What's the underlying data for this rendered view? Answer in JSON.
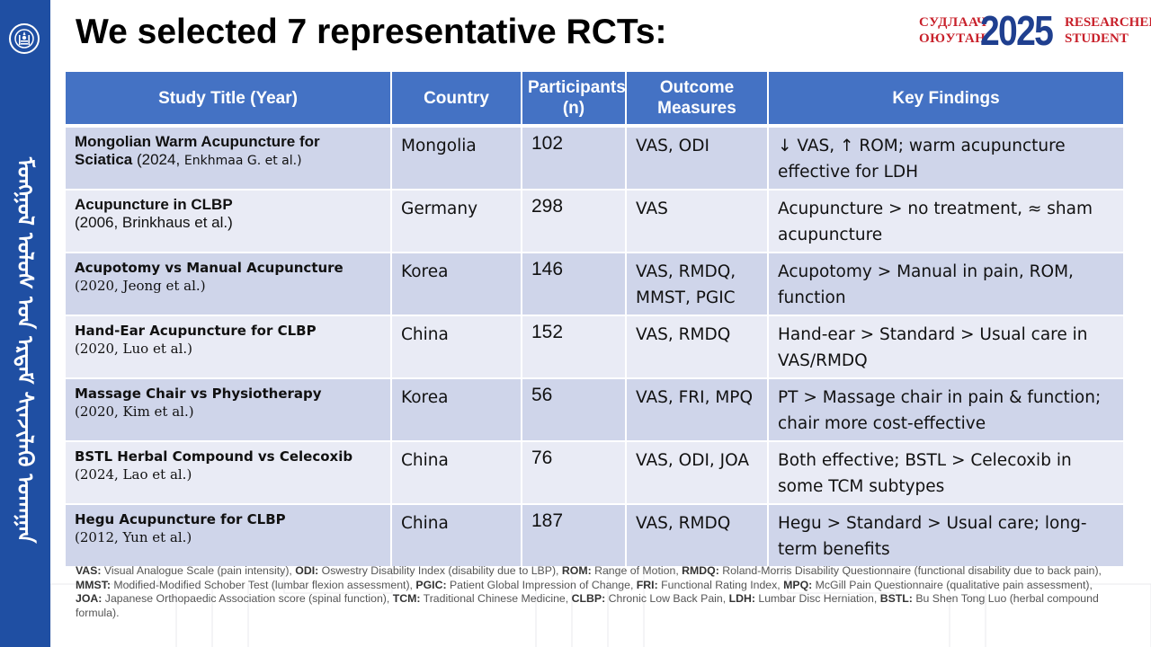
{
  "slide": {
    "title": "We selected 7 representative RCTs:",
    "sidebar_script": "ᠮᠣᠩᠭᠣᠯ ᠤᠯᠤᠰ ᠤᠨ ᠡᠷᠳᠡᠮ ᠰᠢᠨᠵᠢᠯᠡᠬᠦ ᠤᠬᠠᠭᠠᠨ",
    "logo": {
      "mn_line1": "СУДЛААЧ",
      "mn_line2": "ОЮУТАН",
      "year": "2025",
      "en_line1": "RESEARCHER",
      "en_line2": "STUDENT"
    }
  },
  "colors": {
    "sidebar": "#1f4fa3",
    "header_fill": "#4472c4",
    "row_band_dark": "#cfd5ea",
    "row_band_light": "#e9ebf5",
    "logo_red": "#c8202a",
    "logo_blue": "#1f3f8f"
  },
  "icons": [
    "soyombo-emblem-icon"
  ],
  "table": {
    "headers": [
      "Study Title (Year)",
      "Country",
      "Participants (n)",
      "Outcome Measures",
      "Key Findings"
    ],
    "rows": [
      {
        "title": "Mongolian Warm Acupuncture for Sciatica",
        "meta": " (2024, ",
        "meta2": "Enkhmaa G. et al.)",
        "country": "Mongolia",
        "n": "102",
        "outcomes": "VAS, ODI",
        "findings": "↓ VAS, ↑ ROM; warm acupuncture effective for LDH"
      },
      {
        "title": "Acupuncture in CLBP",
        "meta": "(2006, Brinkhaus et al.)",
        "country": "Germany",
        "n": "298",
        "outcomes": "VAS",
        "findings": "Acupuncture > no treatment, ≈ sham acupuncture"
      },
      {
        "title": "Acupotomy vs Manual Acupuncture",
        "meta": "(2020, Jeong et al.)",
        "country": "Korea",
        "n": "146",
        "outcomes": "VAS, RMDQ, MMST, PGIC",
        "findings": "Acupotomy > Manual in pain, ROM, function"
      },
      {
        "title": "Hand-Ear Acupuncture for CLBP",
        "meta": "(2020, Luo et al.)",
        "country": "China",
        "n": "152",
        "outcomes": "VAS, RMDQ",
        "findings": "Hand-ear > Standard > Usual care in VAS/RMDQ"
      },
      {
        "title": "Massage Chair vs Physiotherapy",
        "meta": "(2020, Kim et al.)",
        "country": "Korea",
        "n": "56",
        "outcomes": "VAS, FRI, MPQ",
        "findings": "PT > Massage chair in pain & function; chair more cost-effective"
      },
      {
        "title": "BSTL Herbal Compound vs Celecoxib",
        "meta": "(2024, Lao et al.)",
        "country": "China",
        "n": "76",
        "outcomes": "VAS, ODI, JOA",
        "findings": "Both effective; BSTL > Celecoxib in some TCM subtypes"
      },
      {
        "title": "Hegu Acupuncture for CLBP",
        "meta": "(2012, Yun et al.)",
        "country": "China",
        "n": "187",
        "outcomes": "VAS, RMDQ",
        "findings": "Hegu > Standard > Usual care; long-term benefits"
      }
    ]
  },
  "abbreviations": [
    {
      "term": "VAS:",
      "def": " Visual Analogue Scale (pain intensity), "
    },
    {
      "term": "ODI:",
      "def": " Oswestry Disability Index (disability due to LBP), "
    },
    {
      "term": "ROM:",
      "def": " Range of Motion, "
    },
    {
      "term": "RMDQ:",
      "def": " Roland-Morris Disability Questionnaire (functional disability due to back pain), "
    },
    {
      "term": "MMST:",
      "def": " Modified-Modified Schober Test (lumbar flexion assessment), "
    },
    {
      "term": "PGIC:",
      "def": " Patient Global Impression of Change, "
    },
    {
      "term": "FRI:",
      "def": " Functional Rating Index, "
    },
    {
      "term": "MPQ:",
      "def": " McGill Pain Questionnaire (qualitative pain assessment), "
    },
    {
      "term": "JOA:",
      "def": " Japanese Orthopaedic Association score (spinal function), "
    },
    {
      "term": "TCM:",
      "def": " Traditional Chinese Medicine, "
    },
    {
      "term": "CLBP:",
      "def": " Chronic Low Back Pain, "
    },
    {
      "term": "LDH:",
      "def": " Lumbar Disc Herniation, "
    },
    {
      "term": "BSTL:",
      "def": " Bu Shen Tong Luo (herbal compound formula)."
    }
  ]
}
